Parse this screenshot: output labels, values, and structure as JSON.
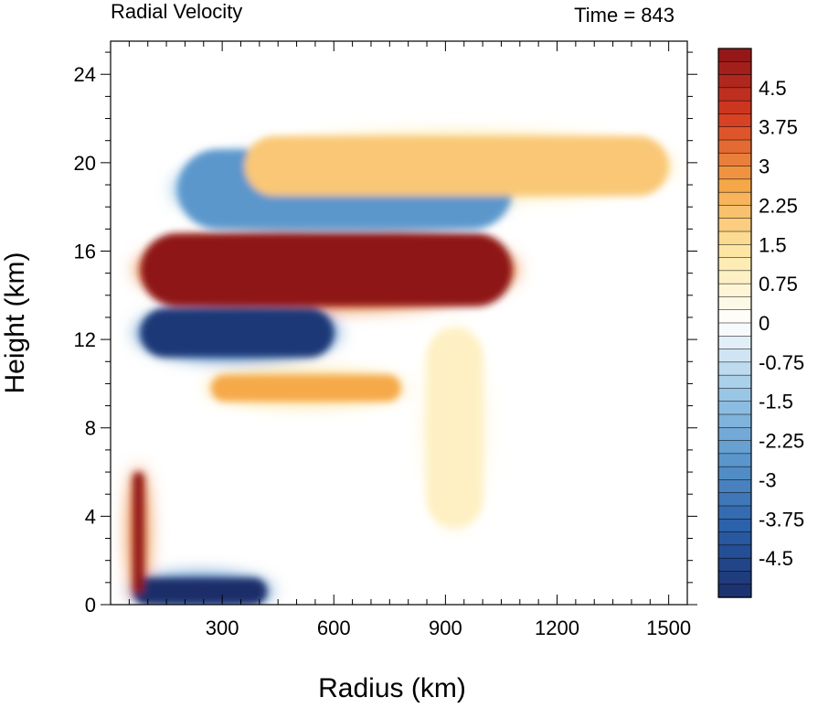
{
  "chart_data": {
    "type": "heatmap",
    "title_left": "Radial Velocity",
    "title_right": "Time = 843",
    "xlabel": "Radius (km)",
    "ylabel": "Height (km)",
    "xlim": [
      0,
      1550
    ],
    "ylim": [
      0,
      25.5
    ],
    "x_ticks": [
      300,
      600,
      900,
      1200,
      1500
    ],
    "x_tick_labels": [
      "300",
      "600",
      "900",
      "1200",
      "1500"
    ],
    "y_ticks": [
      0,
      4,
      8,
      12,
      16,
      20,
      24
    ],
    "y_tick_labels": [
      "0",
      "4",
      "8",
      "12",
      "16",
      "20",
      "24"
    ],
    "grid": false,
    "colorbar": {
      "min": -5.25,
      "max": 5.25,
      "step": 0.25,
      "labels": [
        "4.5",
        "3.75",
        "3",
        "2.25",
        "1.5",
        "0.75",
        "0",
        "-0.75",
        "-1.5",
        "-2.25",
        "-3",
        "-3.75",
        "-4.5"
      ],
      "label_values": [
        4.5,
        3.75,
        3,
        2.25,
        1.5,
        0.75,
        0,
        -0.75,
        -1.5,
        -2.25,
        -3,
        -3.75,
        -4.5
      ],
      "color_stops": [
        "#1b2e6b",
        "#2a5fa8",
        "#5a96cc",
        "#9cc8e6",
        "#ffffff",
        "#fde9a8",
        "#f5a848",
        "#d63c22",
        "#8e1418"
      ]
    },
    "features": [
      {
        "name": "outflow-layer",
        "x": [
          80,
          1080
        ],
        "y": [
          13.5,
          16.8
        ],
        "value": 5.5
      },
      {
        "name": "inflow-below-outflow",
        "x": [
          80,
          600
        ],
        "y": [
          11.2,
          13.4
        ],
        "value": -5.0
      },
      {
        "name": "mid-level-outflow",
        "x": [
          270,
          780
        ],
        "y": [
          9.2,
          10.4
        ],
        "value": 2.6
      },
      {
        "name": "upper-inflow",
        "x": [
          180,
          1080
        ],
        "y": [
          17.0,
          20.6
        ],
        "value": -2.6
      },
      {
        "name": "upper-outflow-band",
        "x": [
          360,
          1500
        ],
        "y": [
          18.5,
          21.2
        ],
        "value": 2.0
      },
      {
        "name": "boundary-layer-inflow",
        "x": [
          60,
          420
        ],
        "y": [
          0,
          1.2
        ],
        "value": -5.5
      },
      {
        "name": "eyewall-low-level-outflow",
        "x": [
          60,
          90
        ],
        "y": [
          0.5,
          6.0
        ],
        "value": 5.5
      },
      {
        "name": "mid-level-weak-outflow",
        "x": [
          850,
          1000
        ],
        "y": [
          3.5,
          12.5
        ],
        "value": 0.9
      }
    ]
  }
}
